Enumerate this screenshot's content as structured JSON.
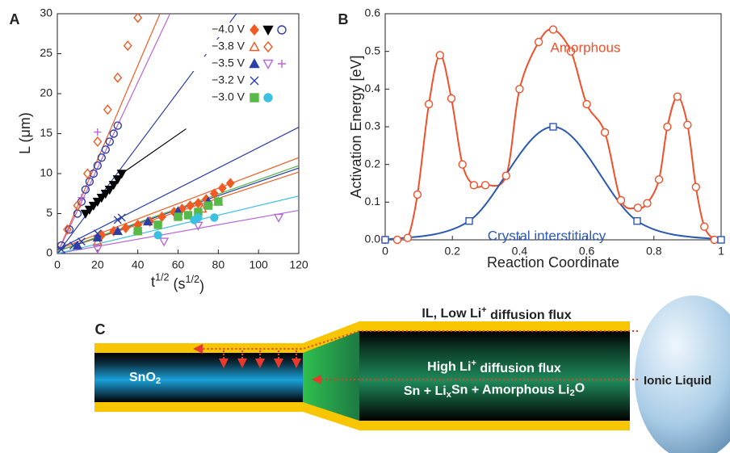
{
  "chart_data": [
    {
      "type": "scatter",
      "panel_label": "A",
      "xlabel_parts": [
        "t",
        "1/2",
        " (s",
        "1/2",
        ")"
      ],
      "ylabel": "L (μm)",
      "xlim": [
        0,
        120
      ],
      "ylim": [
        0,
        30
      ],
      "xticks": [
        0,
        20,
        40,
        60,
        80,
        100,
        120
      ],
      "yticks": [
        0,
        5,
        10,
        15,
        20,
        25,
        30
      ],
      "series": [
        {
          "name": "−4.0 V",
          "marker": "diamond",
          "filled": true,
          "color": "#f15a22",
          "x": [
            22,
            28,
            34,
            40,
            46,
            52,
            58,
            62,
            66,
            70,
            74,
            78,
            82,
            86
          ],
          "values": [
            2.3,
            2.8,
            3.2,
            3.6,
            4.0,
            4.6,
            5.2,
            5.6,
            6.0,
            6.3,
            6.8,
            7.5,
            8.2,
            8.8
          ],
          "fit_x": [
            0,
            120
          ],
          "fit_y": [
            0.5,
            12
          ]
        },
        {
          "name": "−4.0 V",
          "marker": "triangle-down",
          "filled": true,
          "color": "#000000",
          "x": [
            14,
            16,
            18,
            20,
            22,
            24,
            26,
            28,
            30,
            32
          ],
          "values": [
            5,
            5.5,
            6,
            6.5,
            7,
            7.5,
            8,
            8.6,
            9.3,
            10
          ],
          "fit_x": [
            32,
            64
          ],
          "fit_y": [
            10,
            15.6
          ]
        },
        {
          "name": "−4.0 V",
          "marker": "circle",
          "filled": false,
          "color": "#2b3fa8",
          "x": [
            2,
            6,
            10,
            12,
            14,
            16,
            18,
            20,
            22,
            24,
            26,
            28,
            30
          ],
          "values": [
            1,
            3,
            5,
            6.5,
            8,
            9,
            10,
            11,
            12,
            13,
            14,
            15,
            16
          ],
          "fit_x": [
            0,
            89
          ],
          "fit_y": [
            0,
            30
          ]
        },
        {
          "name": "−3.8 V",
          "marker": "triangle-up",
          "filled": false,
          "color": "#f15a22",
          "x": [
            20,
            40,
            60,
            72,
            80
          ],
          "values": [
            1.5,
            3,
            4.8,
            5.6,
            6.5
          ],
          "fit_x": [
            0,
            120
          ],
          "fit_y": [
            0.3,
            10.2
          ]
        },
        {
          "name": "−3.8 V",
          "marker": "diamond",
          "filled": false,
          "color": "#f15a22",
          "x": [
            5,
            10,
            15,
            20,
            25,
            30,
            35,
            40
          ],
          "values": [
            3,
            6,
            10,
            14,
            18,
            22,
            26,
            29.5
          ],
          "fit_x": [
            0,
            51
          ],
          "fit_y": [
            0,
            30
          ]
        },
        {
          "name": "−3.5 V",
          "marker": "triangle-up",
          "filled": true,
          "color": "#2b3fa8",
          "x": [
            10,
            20,
            30,
            45,
            60,
            75
          ],
          "values": [
            1,
            2,
            2.8,
            4,
            5.3,
            6.5
          ],
          "fit_x": [
            0,
            120
          ],
          "fit_y": [
            0.3,
            10.7
          ]
        },
        {
          "name": "−3.5 V",
          "marker": "triangle-down",
          "filled": false,
          "color": "#b866d6",
          "x": [
            20,
            53,
            70,
            110
          ],
          "values": [
            0.6,
            1.5,
            3.5,
            4.5
          ],
          "fit_x": [
            0,
            120
          ],
          "fit_y": [
            0,
            5.4
          ]
        },
        {
          "name": "−3.5 V",
          "marker": "plus",
          "filled": false,
          "color": "#b866d6",
          "x": [
            12,
            20
          ],
          "values": [
            7,
            15.2
          ],
          "fit_x": [
            0,
            56
          ],
          "fit_y": [
            0,
            30
          ]
        },
        {
          "name": "−3.2 V",
          "marker": "x",
          "filled": false,
          "color": "#2b3fa8",
          "x": [
            2,
            8,
            12,
            20,
            30,
            32
          ],
          "values": [
            0.5,
            1,
            1.5,
            2.5,
            4.2,
            4.5
          ],
          "fit_x": [
            0,
            120
          ],
          "fit_y": [
            0.5,
            15.8
          ]
        },
        {
          "name": "−3.0 V",
          "marker": "square",
          "filled": true,
          "color": "#57b947",
          "x": [
            40,
            50,
            60,
            65,
            70,
            75,
            80
          ],
          "values": [
            2.8,
            3.6,
            4.6,
            4.8,
            5.2,
            6,
            6.5
          ],
          "fit_x": [
            0,
            120
          ],
          "fit_y": [
            0.3,
            11
          ]
        },
        {
          "name": "−3.0 V",
          "marker": "circle",
          "filled": true,
          "color": "#3cc0e0",
          "x": [
            50,
            68,
            70,
            78
          ],
          "values": [
            2.3,
            4.2,
            4.5,
            4.5
          ],
          "fit_x": [
            0,
            120
          ],
          "fit_y": [
            0,
            7.2
          ]
        }
      ]
    },
    {
      "type": "line",
      "panel_label": "B",
      "xlabel": "Reaction Coordinate",
      "ylabel": "Activation Energy [eV]",
      "xlim": [
        0,
        1
      ],
      "ylim": [
        0,
        0.6
      ],
      "xticks": [
        0,
        0.2,
        0.4,
        0.6,
        0.8,
        1
      ],
      "yticks": [
        {
          "value": 0,
          "label": "0.0"
        },
        0.1,
        0.2,
        0.3,
        0.4,
        0.5,
        0.6
      ],
      "series": [
        {
          "name": "Amorphous",
          "marker": "circle",
          "color": "#f0502a",
          "x": [
            0,
            0.036,
            0.067,
            0.096,
            0.13,
            0.163,
            0.197,
            0.23,
            0.264,
            0.298,
            0.36,
            0.4,
            0.457,
            0.5,
            0.553,
            0.6,
            0.654,
            0.702,
            0.752,
            0.78,
            0.815,
            0.84,
            0.87,
            0.9,
            0.925,
            0.95,
            0.98
          ],
          "values": [
            0,
            0,
            0.005,
            0.12,
            0.36,
            0.49,
            0.375,
            0.2,
            0.145,
            0.145,
            0.17,
            0.4,
            0.525,
            0.558,
            0.5,
            0.36,
            0.285,
            0.105,
            0.085,
            0.097,
            0.16,
            0.3,
            0.38,
            0.305,
            0.14,
            0.035,
            0
          ]
        },
        {
          "name": "Crystal interstitialcy",
          "marker": "square",
          "color": "#2b59b5",
          "x": [
            0,
            0.25,
            0.5,
            0.75,
            1
          ],
          "values": [
            0,
            0.05,
            0.3,
            0.05,
            0
          ]
        }
      ]
    }
  ],
  "diagram": {
    "panel_label": "C",
    "title_parts": [
      "IL, Low Li",
      "+",
      " diffusion flux"
    ],
    "tube_label_parts": [
      "SnO",
      "2"
    ],
    "core_label_parts": [
      "High Li",
      "+",
      " diffusion flux"
    ],
    "product_parts": [
      "Sn + Li",
      "x",
      "Sn + Amorphous Li",
      "2",
      "O"
    ],
    "liquid_label": "Ionic Liquid"
  }
}
